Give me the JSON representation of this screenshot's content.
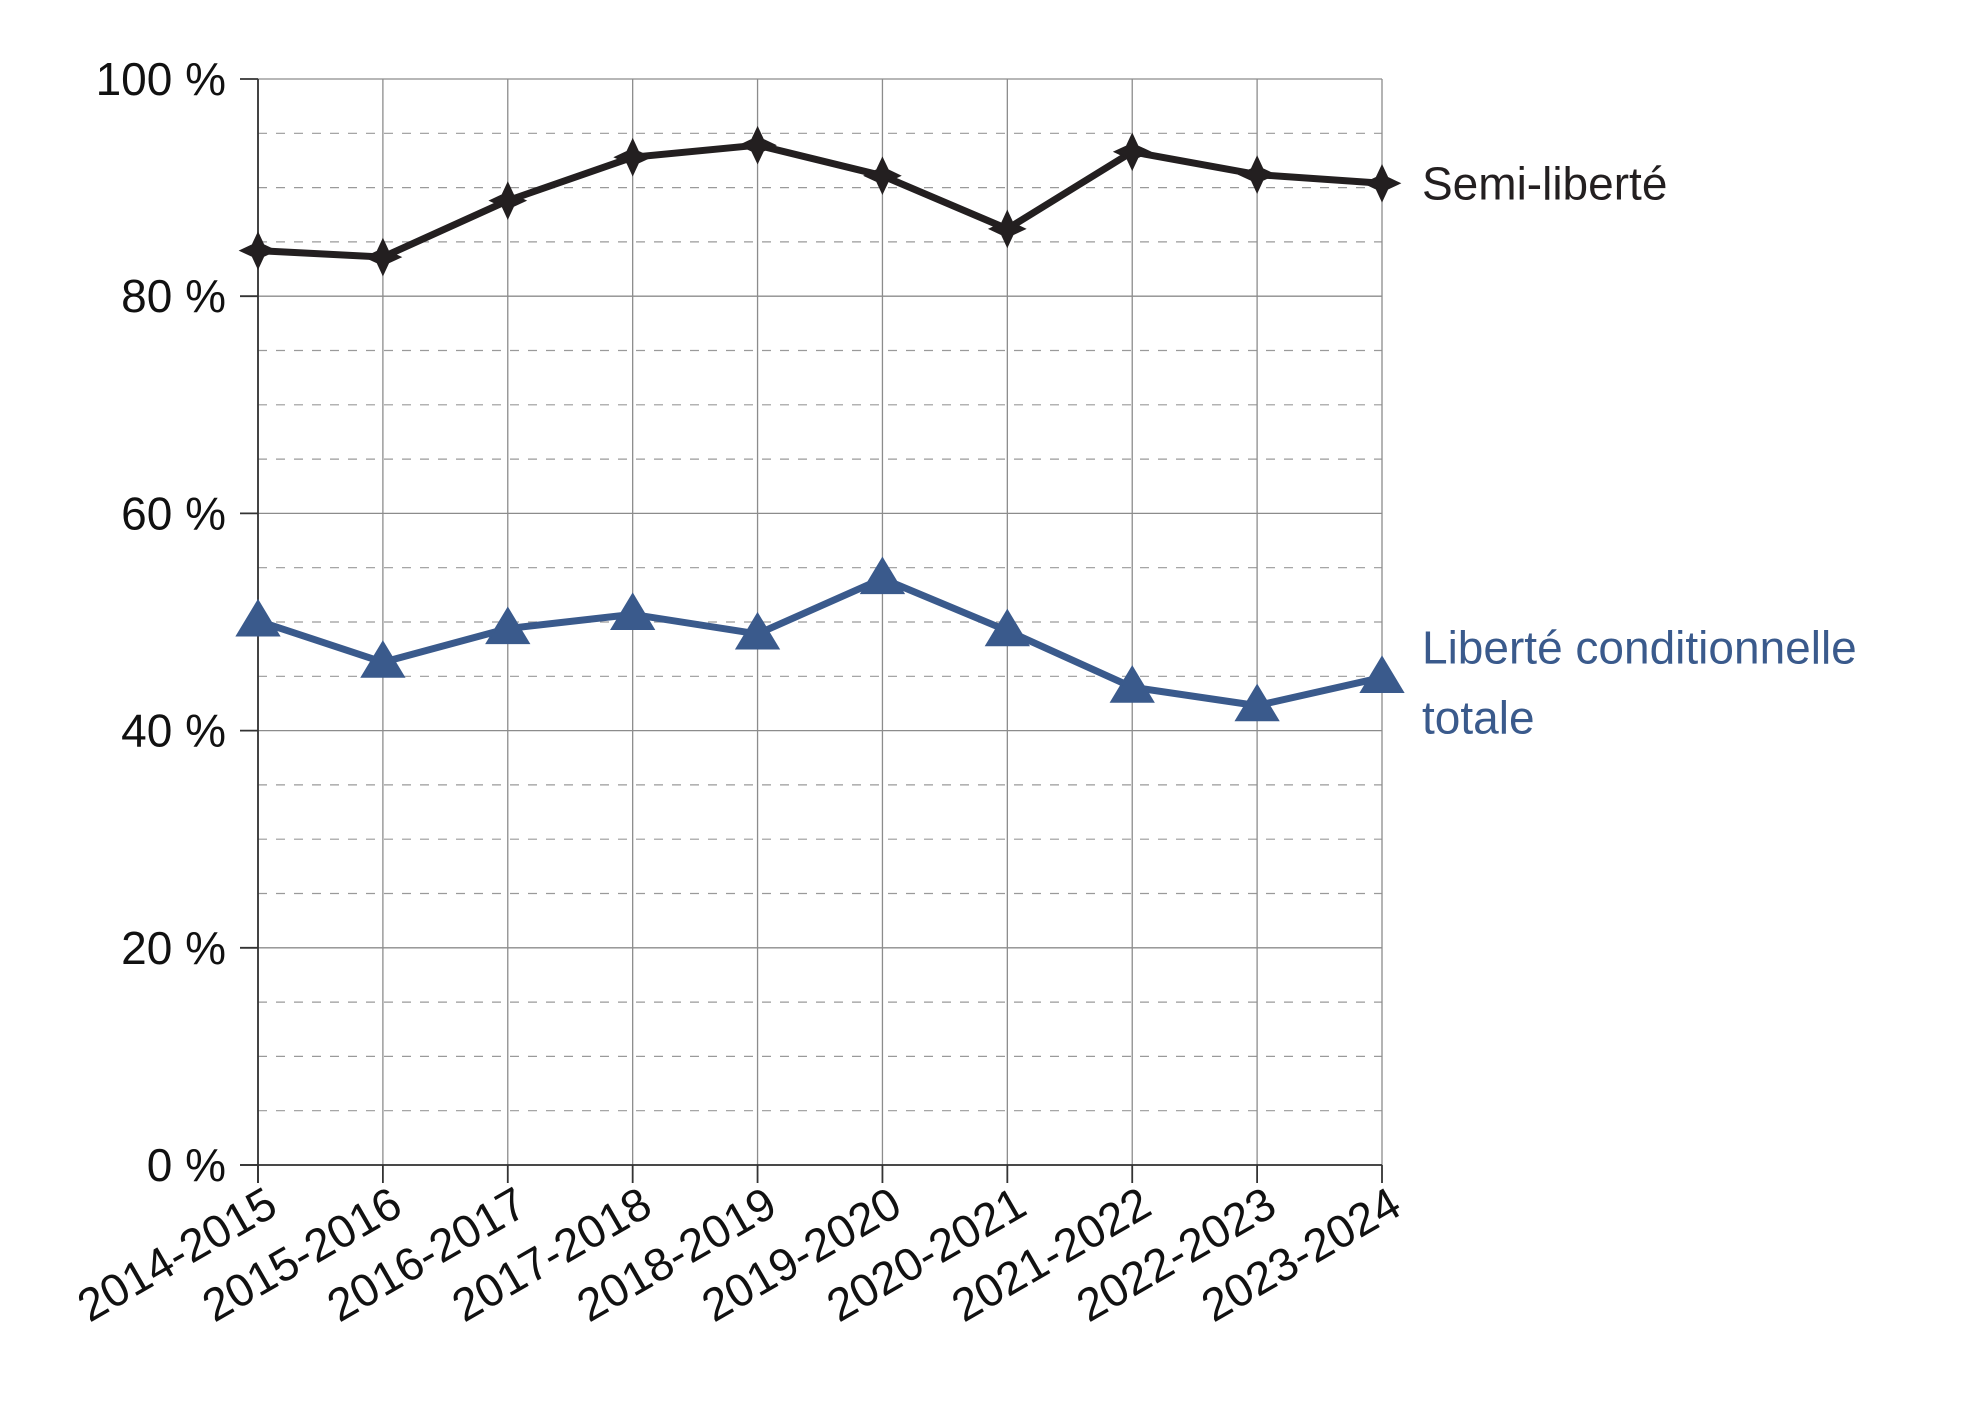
{
  "chart_data": {
    "type": "line",
    "title": "",
    "xlabel": "",
    "ylabel": "",
    "categories": [
      "2014-2015",
      "2015-2016",
      "2016-2017",
      "2017-2018",
      "2018-2019",
      "2019-2020",
      "2020-2021",
      "2021-2022",
      "2022-2023",
      "2023-2024"
    ],
    "ylim": [
      0,
      100
    ],
    "y_major_ticks": [
      0,
      20,
      40,
      60,
      80,
      100
    ],
    "y_tick_labels": [
      "0 %",
      "20 %",
      "40 %",
      "60 %",
      "80 %",
      "100 %"
    ],
    "y_minor_step": 5,
    "grid": true,
    "legend": "direct labels at right end of each line",
    "series": [
      {
        "name": "Semi-liberté",
        "label_lines": [
          "Semi-liberté"
        ],
        "color": "#231f20",
        "marker": "star",
        "values": [
          84.2,
          83.6,
          88.8,
          92.8,
          93.9,
          91.1,
          86.2,
          93.3,
          91.2,
          90.4
        ]
      },
      {
        "name": "Liberté conditionnelle totale",
        "label_lines": [
          "Liberté conditionnelle",
          "totale"
        ],
        "color": "#3a5a8c",
        "marker": "triangle",
        "values": [
          50.1,
          46.3,
          49.4,
          50.7,
          48.9,
          54.0,
          49.2,
          44.0,
          42.3,
          44.9
        ]
      }
    ]
  }
}
